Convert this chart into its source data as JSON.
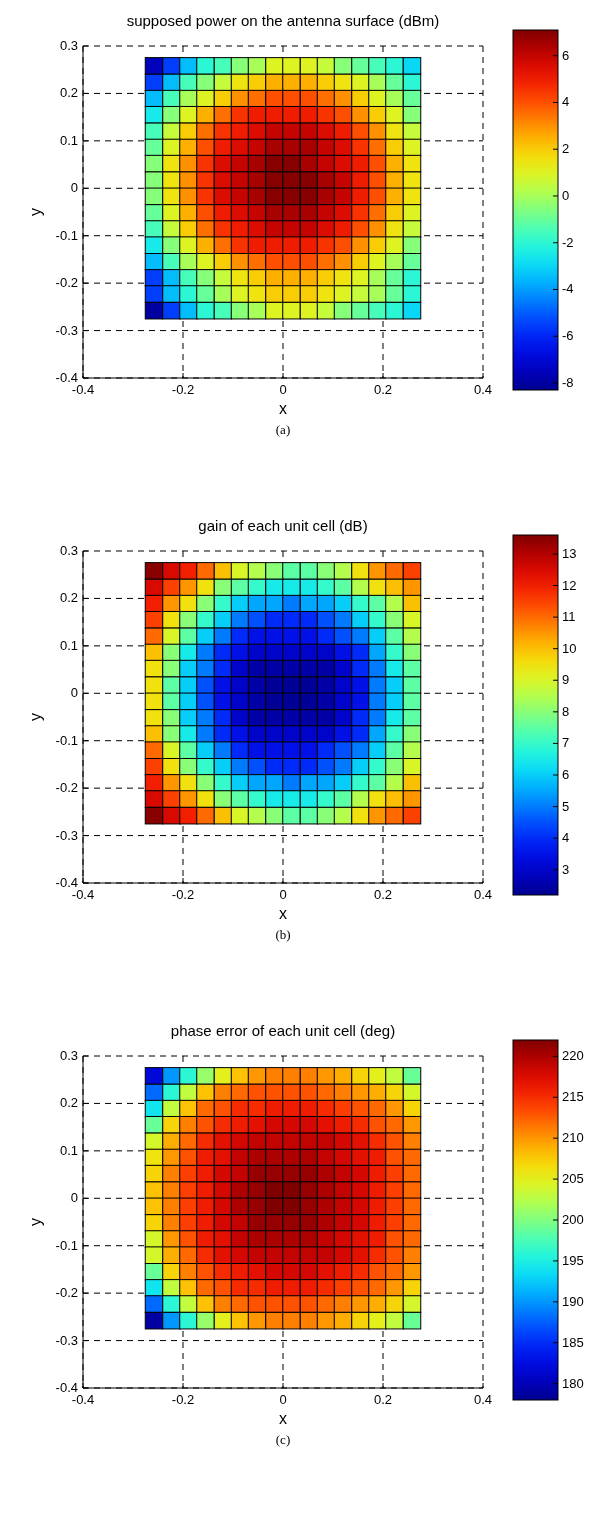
{
  "chart_data": [
    {
      "type": "heatmap",
      "title": "supposed power on the antenna surface (dBm)",
      "xlabel": "x",
      "ylabel": "y",
      "annotations": [
        "(a)"
      ],
      "x": [
        -0.258,
        -0.223,
        -0.189,
        -0.155,
        -0.12,
        -0.086,
        -0.052,
        -0.017,
        0.017,
        0.052,
        0.086,
        0.12,
        0.155,
        0.189,
        0.223,
        0.258
      ],
      "y": [
        0.258,
        0.223,
        0.189,
        0.155,
        0.12,
        0.086,
        0.052,
        0.017,
        -0.017,
        -0.052,
        -0.086,
        -0.12,
        -0.155,
        -0.189,
        -0.223,
        -0.258
      ],
      "xlim": [
        -0.4,
        0.4
      ],
      "ylim": [
        -0.4,
        0.3
      ],
      "xticks": [
        -0.4,
        -0.2,
        0,
        0.2,
        0.4
      ],
      "yticks": [
        -0.4,
        -0.3,
        -0.2,
        -0.1,
        0,
        0.1,
        0.2,
        0.3
      ],
      "grid": true,
      "clim": [
        -8.3,
        7.1
      ],
      "cticks": [
        -8,
        -6,
        -4,
        -2,
        0,
        2,
        4,
        6
      ],
      "cells": [
        [
          -7.5,
          -5.5,
          -3.5,
          -2,
          -1.5,
          -0.5,
          0,
          1,
          1,
          1,
          0.5,
          -0.5,
          -1,
          -1.5,
          -2,
          -3
        ],
        [
          -5.5,
          -3.5,
          -1.5,
          -0.5,
          0.5,
          1.5,
          2,
          2.5,
          2.5,
          2.5,
          2,
          1.5,
          1,
          0,
          -1,
          -2
        ],
        [
          -3.5,
          -1.5,
          0,
          1,
          2,
          3,
          3.5,
          4,
          4,
          4,
          3.5,
          3,
          2,
          1,
          0,
          -1
        ],
        [
          -2.5,
          -0.5,
          1,
          2.5,
          3.5,
          4.5,
          5,
          5,
          5,
          5,
          4.5,
          4,
          3,
          2,
          1,
          -0.5
        ],
        [
          -1.5,
          0.5,
          2,
          3.5,
          4.5,
          5,
          5.5,
          6,
          6,
          6,
          5.5,
          5,
          4,
          3,
          1.5,
          0.5
        ],
        [
          -1,
          1,
          2.5,
          4,
          5,
          5.5,
          6,
          6.5,
          6.5,
          6.5,
          6,
          5.5,
          4.5,
          3.5,
          2,
          1
        ],
        [
          -0.5,
          1.5,
          3,
          4.5,
          5.5,
          6,
          6.5,
          7,
          7,
          6.5,
          6,
          5.5,
          5,
          4,
          2.5,
          1.5
        ],
        [
          -0.5,
          1.5,
          3,
          4.5,
          5.5,
          6,
          6.5,
          7,
          7,
          7,
          6.5,
          6,
          5,
          4,
          2.5,
          1.5
        ],
        [
          -0.5,
          1.5,
          3,
          4.5,
          5.5,
          6,
          6.5,
          7,
          7,
          7,
          6.5,
          6,
          5,
          4,
          2.5,
          1.5
        ],
        [
          -1,
          1,
          2.5,
          4,
          5,
          5.5,
          6,
          6.5,
          6.5,
          6.5,
          6,
          5.5,
          4.5,
          3.5,
          2,
          1
        ],
        [
          -1.5,
          0.5,
          2,
          3.5,
          4.5,
          5,
          5.5,
          6,
          6,
          6,
          5.5,
          5,
          4,
          3,
          1.5,
          0.5
        ],
        [
          -2.5,
          -0.5,
          1,
          2.5,
          3.5,
          4.5,
          5,
          5,
          5,
          5,
          4.5,
          4,
          3,
          2,
          1,
          -0.5
        ],
        [
          -3.5,
          -1.5,
          0,
          1,
          2,
          3,
          3.5,
          4,
          4,
          4,
          3.5,
          3,
          2,
          1,
          0,
          -1
        ],
        [
          -5.5,
          -3.5,
          -1.5,
          -0.5,
          0.5,
          1.5,
          2,
          2.5,
          2.5,
          2.5,
          2,
          1.5,
          1,
          0,
          -1,
          -2
        ],
        [
          -5.5,
          -3.5,
          -2,
          -1,
          0,
          1,
          1.5,
          2,
          2,
          2,
          1.5,
          1,
          0.5,
          0,
          -1,
          -2
        ],
        [
          -8,
          -5.5,
          -3.5,
          -2,
          -1.5,
          -0.5,
          0,
          1,
          1,
          1,
          0.5,
          -0.5,
          -1,
          -1.5,
          -2,
          -3
        ]
      ]
    },
    {
      "type": "heatmap",
      "title": "gain of each unit cell (dB)",
      "xlabel": "x",
      "ylabel": "y",
      "annotations": [
        "(b)"
      ],
      "x": [
        -0.258,
        -0.223,
        -0.189,
        -0.155,
        -0.12,
        -0.086,
        -0.052,
        -0.017,
        0.017,
        0.052,
        0.086,
        0.12,
        0.155,
        0.189,
        0.223,
        0.258
      ],
      "y": [
        0.258,
        0.223,
        0.189,
        0.155,
        0.12,
        0.086,
        0.052,
        0.017,
        -0.017,
        -0.052,
        -0.086,
        -0.12,
        -0.155,
        -0.189,
        -0.223,
        -0.258
      ],
      "xlim": [
        -0.4,
        0.4
      ],
      "ylim": [
        -0.4,
        0.3
      ],
      "xticks": [
        -0.4,
        -0.2,
        0,
        0.2,
        0.4
      ],
      "yticks": [
        -0.4,
        -0.3,
        -0.2,
        -0.1,
        0,
        0.1,
        0.2,
        0.3
      ],
      "grid": true,
      "clim": [
        2.2,
        13.6
      ],
      "cticks": [
        3,
        4,
        5,
        6,
        7,
        8,
        9,
        10,
        11,
        12,
        13
      ],
      "cells": [
        [
          13.5,
          12.5,
          12,
          11,
          10,
          9,
          8.5,
          8,
          7.5,
          7.5,
          8,
          8.5,
          9.5,
          10.5,
          11,
          11.5
        ],
        [
          12.5,
          11.5,
          10.5,
          9.5,
          8,
          7.5,
          7,
          6.5,
          6.5,
          6.5,
          7,
          7.5,
          8.5,
          9.5,
          10,
          10.5
        ],
        [
          12,
          10.5,
          9.5,
          8,
          7,
          6,
          5.5,
          5.5,
          5,
          5.5,
          5.5,
          6,
          7,
          7.5,
          8.5,
          10
        ],
        [
          11.5,
          9.5,
          8,
          7,
          6,
          5,
          4.5,
          4,
          4,
          4,
          4.5,
          5,
          6,
          7,
          8,
          9
        ],
        [
          11,
          9,
          7.5,
          6,
          5,
          4,
          3.5,
          3.5,
          3.5,
          3.5,
          4,
          4.5,
          5,
          6,
          7.5,
          8.5
        ],
        [
          10,
          8,
          6.5,
          5,
          4,
          3.5,
          3,
          3,
          3,
          3,
          3,
          3.5,
          4,
          5.5,
          7,
          8
        ],
        [
          9.5,
          8,
          6,
          5,
          4,
          3,
          2.5,
          2.5,
          2.5,
          2.5,
          2.5,
          3,
          4,
          5,
          6.5,
          7.5
        ],
        [
          9.5,
          7.5,
          6,
          4.5,
          3.5,
          3,
          2.5,
          2.3,
          2.3,
          2.3,
          2.5,
          3,
          3.5,
          5,
          6,
          7.5
        ],
        [
          9.5,
          7.5,
          6,
          4.5,
          3.5,
          3,
          2.5,
          2.3,
          2.3,
          2.3,
          2.5,
          3,
          3.5,
          5,
          6,
          7.5
        ],
        [
          9.5,
          8,
          6,
          5,
          4,
          3,
          2.5,
          2.5,
          2.5,
          2.5,
          2.5,
          3,
          4,
          5,
          6.5,
          7.5
        ],
        [
          10,
          8,
          6.5,
          5,
          4,
          3.5,
          3,
          3,
          3,
          3,
          3,
          3.5,
          4,
          5.5,
          7,
          8
        ],
        [
          11,
          9,
          7.5,
          6,
          5,
          4,
          3.5,
          3.5,
          3.5,
          3.5,
          4,
          4.5,
          5,
          6,
          7.5,
          8.5
        ],
        [
          11.5,
          9.5,
          8,
          7,
          6,
          5,
          4.5,
          4,
          4,
          4,
          4.5,
          5,
          6,
          7,
          8,
          9
        ],
        [
          12,
          10.5,
          9.5,
          8,
          7,
          6,
          5.5,
          5.5,
          5,
          5.5,
          5.5,
          6,
          7,
          7.5,
          8.5,
          10
        ],
        [
          12.5,
          11.5,
          10.5,
          9.5,
          8,
          7.5,
          7,
          6.5,
          6.5,
          6.5,
          7,
          7.5,
          8.5,
          9.5,
          10,
          10.5
        ],
        [
          13.5,
          12.5,
          12,
          11,
          10,
          9,
          8.5,
          8,
          7.5,
          7.5,
          8,
          8.5,
          9.5,
          10.5,
          11,
          11.5
        ]
      ]
    },
    {
      "type": "heatmap",
      "title": "phase error of each unit cell (deg)",
      "xlabel": "x",
      "ylabel": "y",
      "annotations": [
        "(c)"
      ],
      "x": [
        -0.258,
        -0.223,
        -0.189,
        -0.155,
        -0.12,
        -0.086,
        -0.052,
        -0.017,
        0.017,
        0.052,
        0.086,
        0.12,
        0.155,
        0.189,
        0.223,
        0.258
      ],
      "y": [
        0.258,
        0.223,
        0.189,
        0.155,
        0.12,
        0.086,
        0.052,
        0.017,
        -0.017,
        -0.052,
        -0.086,
        -0.12,
        -0.155,
        -0.189,
        -0.223,
        -0.258
      ],
      "xlim": [
        -0.4,
        0.4
      ],
      "ylim": [
        -0.4,
        0.3
      ],
      "xticks": [
        -0.4,
        -0.2,
        0,
        0.2,
        0.4
      ],
      "yticks": [
        -0.4,
        -0.3,
        -0.2,
        -0.1,
        0,
        0.1,
        0.2,
        0.3
      ],
      "grid": true,
      "clim": [
        178,
        222
      ],
      "cticks": [
        180,
        185,
        190,
        195,
        200,
        205,
        210,
        215,
        220
      ],
      "cells": [
        [
          182,
          190,
          196,
          201,
          205,
          208,
          210,
          211,
          211,
          211,
          210,
          209,
          207,
          205,
          203,
          199
        ],
        [
          188,
          196,
          203,
          208,
          211,
          212,
          213,
          213,
          213,
          213,
          212,
          211,
          210,
          209,
          207,
          204
        ],
        [
          194,
          203,
          208,
          212,
          213,
          215,
          215,
          216,
          216,
          216,
          215,
          214,
          213,
          212,
          210,
          207
        ],
        [
          199,
          207,
          211,
          213,
          215,
          216,
          217,
          218,
          218,
          218,
          217,
          216,
          215,
          213,
          212,
          210
        ],
        [
          204,
          209,
          212,
          215,
          217,
          218,
          219,
          219,
          219,
          219,
          219,
          218,
          217,
          215,
          213,
          211
        ],
        [
          206,
          210,
          213,
          216,
          217,
          219,
          220,
          220,
          220,
          220,
          219,
          218,
          217,
          216,
          213,
          212
        ],
        [
          207,
          211,
          214,
          216,
          218,
          219,
          221,
          221,
          221,
          221,
          220,
          219,
          218,
          216,
          214,
          212
        ],
        [
          208,
          211,
          214,
          216,
          218,
          220,
          221,
          222,
          222,
          221,
          220,
          219,
          218,
          216,
          214,
          212
        ],
        [
          208,
          211,
          214,
          216,
          218,
          220,
          221,
          222,
          222,
          221,
          220,
          219,
          218,
          216,
          214,
          212
        ],
        [
          207,
          211,
          214,
          216,
          218,
          219,
          221,
          221,
          221,
          221,
          220,
          219,
          218,
          216,
          214,
          212
        ],
        [
          204,
          210,
          213,
          216,
          217,
          219,
          220,
          220,
          220,
          220,
          219,
          218,
          217,
          216,
          213,
          212
        ],
        [
          204,
          209,
          212,
          215,
          217,
          218,
          219,
          219,
          219,
          219,
          219,
          218,
          217,
          215,
          213,
          211
        ],
        [
          199,
          207,
          211,
          213,
          215,
          216,
          217,
          218,
          218,
          218,
          217,
          216,
          215,
          213,
          212,
          210
        ],
        [
          194,
          203,
          208,
          212,
          213,
          215,
          215,
          216,
          216,
          216,
          215,
          214,
          213,
          212,
          210,
          207
        ],
        [
          188,
          196,
          203,
          208,
          211,
          212,
          213,
          213,
          213,
          213,
          212,
          211,
          210,
          209,
          207,
          204
        ],
        [
          179,
          190,
          196,
          201,
          205,
          208,
          210,
          211,
          211,
          211,
          210,
          209,
          207,
          205,
          203,
          199
        ]
      ]
    }
  ]
}
